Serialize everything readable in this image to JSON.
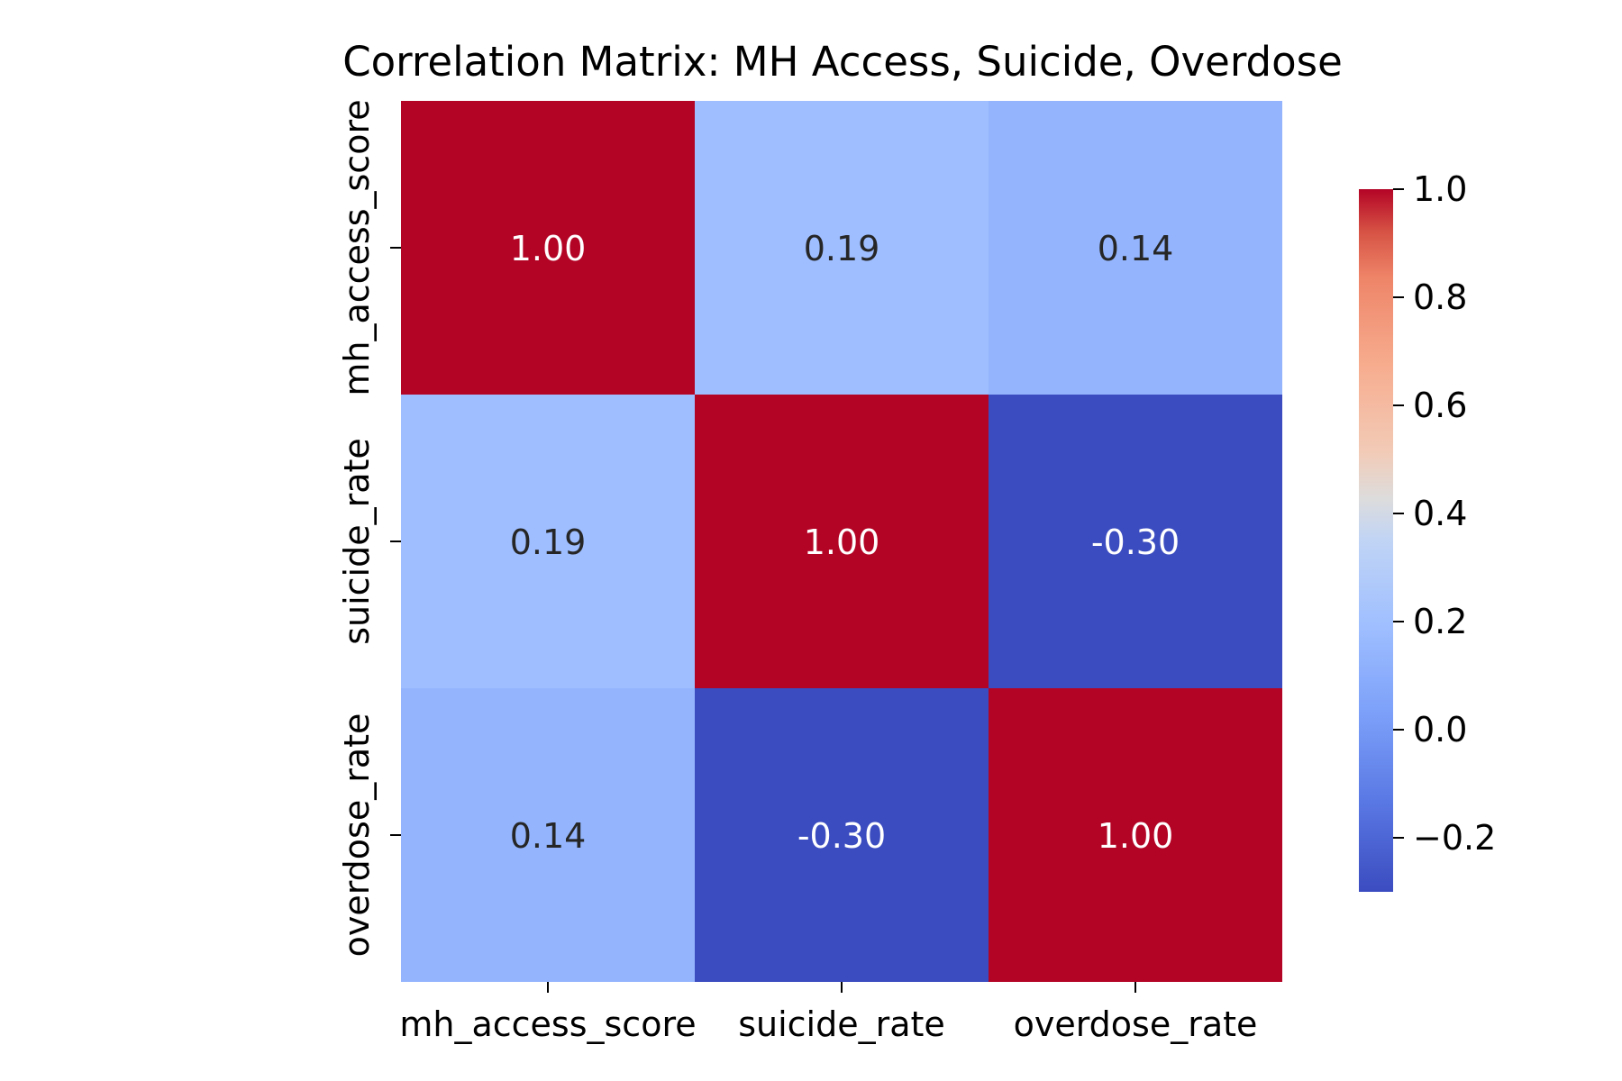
{
  "chart_data": {
    "type": "heatmap",
    "title": "Correlation Matrix: MH Access, Suicide, Overdose",
    "x_categories": [
      "mh_access_score",
      "suicide_rate",
      "overdose_rate"
    ],
    "y_categories": [
      "mh_access_score",
      "suicide_rate",
      "overdose_rate"
    ],
    "values": [
      [
        1.0,
        0.19,
        0.14
      ],
      [
        0.19,
        1.0,
        -0.3
      ],
      [
        0.14,
        -0.3,
        1.0
      ]
    ],
    "value_labels": [
      [
        "1.00",
        "0.19",
        "0.14"
      ],
      [
        "0.19",
        "1.00",
        "-0.30"
      ],
      [
        "0.14",
        "-0.30",
        "1.00"
      ]
    ],
    "colormap": "coolwarm",
    "color_range": [
      -0.3,
      1.0
    ],
    "colorbar_ticks": [
      {
        "value": 1.0,
        "label": "1.0"
      },
      {
        "value": 0.8,
        "label": "0.8"
      },
      {
        "value": 0.6,
        "label": "0.6"
      },
      {
        "value": 0.4,
        "label": "0.4"
      },
      {
        "value": 0.2,
        "label": "0.2"
      },
      {
        "value": 0.0,
        "label": "0.0"
      },
      {
        "value": -0.2,
        "label": "−0.2"
      }
    ],
    "grid": false,
    "legend": "colorbar-right"
  }
}
